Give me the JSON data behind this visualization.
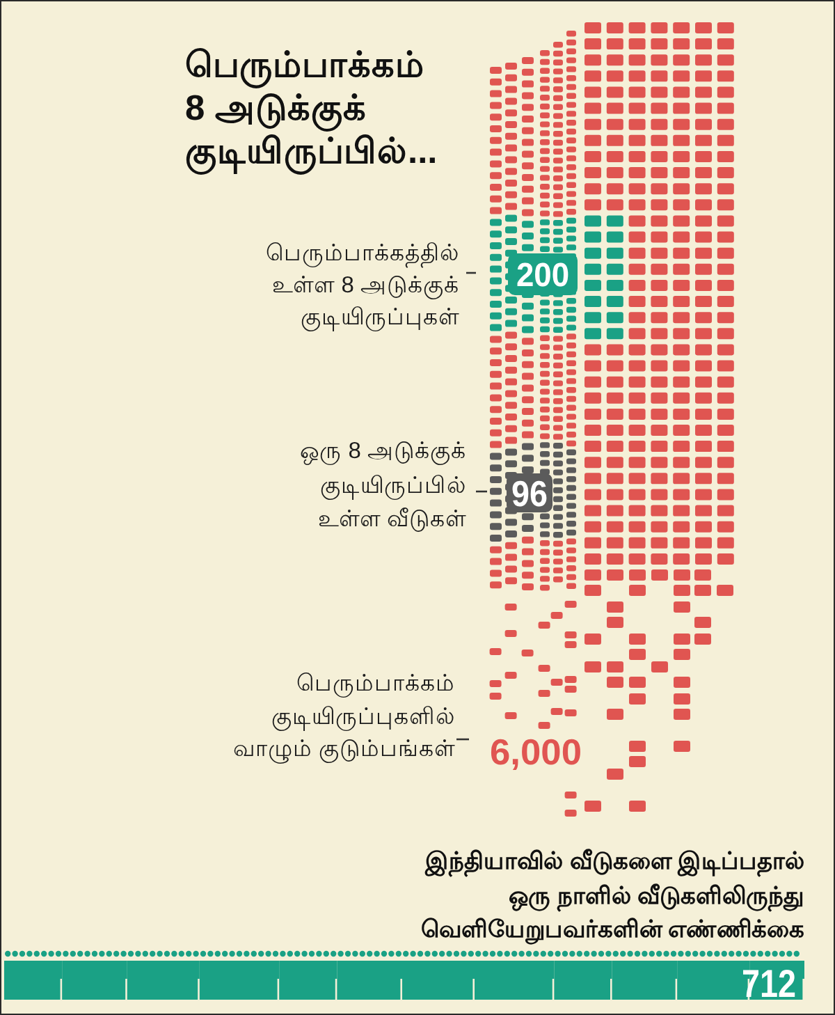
{
  "chart_data": {
    "type": "other",
    "title": "பெரும்பாக்கம் 8 அடுக்குக் குடியிருப்பில்...",
    "categories": [
      "பெரும்பாக்கத்தில் உள்ள 8 அடுக்குக் குடியிருப்புகள்",
      "ஒரு 8 அடுக்குக் குடியிருப்பில் உள்ள வீடுகள்",
      "பெரும்பாக்கம் குடியிருப்புகளில் வாழும் குடும்பங்கள்",
      "இந்தியாவில் வீடுகளை இடிப்பதால் ஒரு நாளில் வீடுகளிலிருந்து வெளியேறுபவர்களின் எண்ணிக்கை"
    ],
    "values": [
      200,
      96,
      6000,
      712
    ],
    "value_labels": [
      "200",
      "96",
      "6,000",
      "712"
    ],
    "colors": [
      "#1aa185",
      "#5b5b5b",
      "#e05551",
      "#1aa185"
    ]
  }
}
